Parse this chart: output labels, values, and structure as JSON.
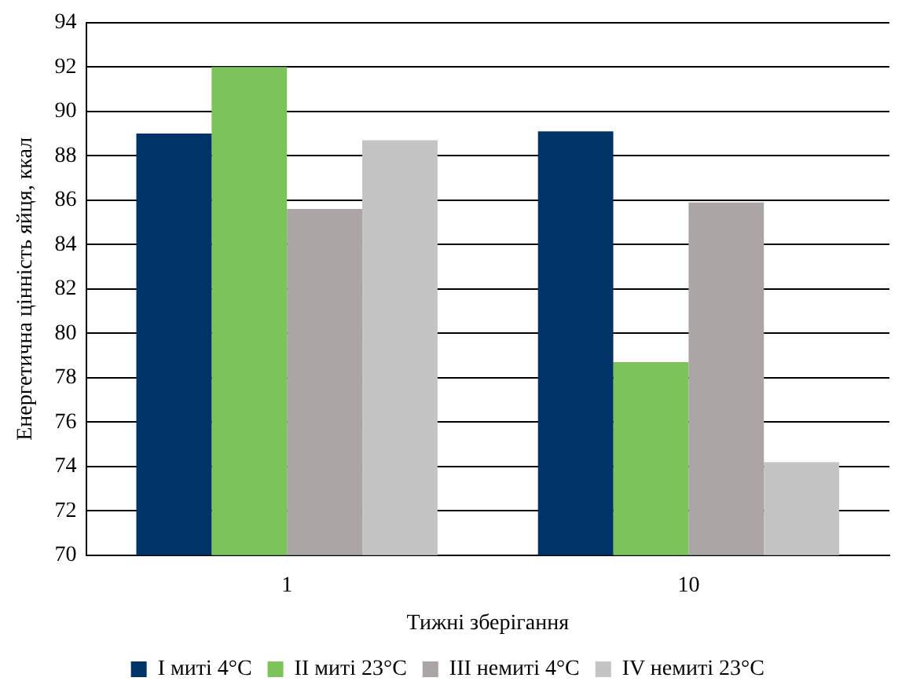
{
  "chart_data": {
    "type": "bar",
    "xlabel": "Тижні зберігання",
    "ylabel": "Енергетична цінність яйця, ккал",
    "categories": [
      "1",
      "10"
    ],
    "series": [
      {
        "name": "I миті 4°C",
        "color": "#003366",
        "values": [
          89.0,
          89.1
        ]
      },
      {
        "name": "II миті 23°C",
        "color": "#7cc35a",
        "values": [
          92.0,
          78.7
        ]
      },
      {
        "name": "III немиті 4°C",
        "color": "#aba5a5",
        "values": [
          85.6,
          85.9
        ]
      },
      {
        "name": "IV немиті 23°C",
        "color": "#c4c4c4",
        "values": [
          88.7,
          74.2
        ]
      }
    ],
    "ylim": [
      70,
      94
    ],
    "yticks": [
      70,
      72,
      74,
      76,
      78,
      80,
      82,
      84,
      86,
      88,
      90,
      92,
      94
    ],
    "grid": "y",
    "legend": "bottom"
  }
}
